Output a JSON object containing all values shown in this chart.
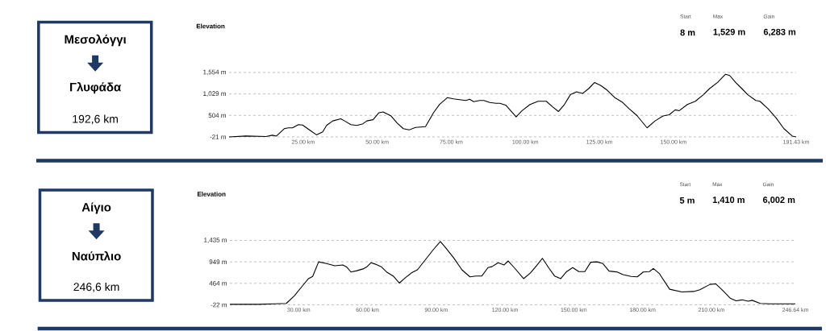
{
  "chart_data": [
    {
      "type": "line",
      "title": "Elevation",
      "color": "#000000",
      "grid": "y",
      "annotations": [
        "Μεσολόγγι",
        "Γλυφάδα",
        "192,6 km",
        "Start",
        "8 m",
        "Max",
        "1,529 m",
        "Gain",
        "6,283 m"
      ],
      "x": [
        0,
        5.7,
        12.5,
        14.6,
        16.0,
        18.6,
        20.0,
        21.4,
        23.4,
        24.8,
        27.5,
        29.5,
        31.6,
        32.9,
        35.0,
        37.7,
        39.0,
        41.1,
        43.1,
        45.2,
        46.5,
        48.6,
        50.6,
        52.0,
        54.7,
        56.7,
        58.8,
        60.8,
        62.9,
        66.3,
        69.0,
        71.0,
        73.7,
        75.8,
        77.8,
        79.9,
        81.2,
        82.6,
        84.6,
        86.0,
        88.0,
        90.1,
        91.4,
        93.5,
        96.9,
        98.9,
        101.6,
        104.3,
        107.1,
        109.1,
        111.2,
        113.2,
        115.2,
        117.3,
        119.3,
        121.4,
        123.4,
        125.4,
        127.5,
        130.2,
        132.9,
        135.0,
        137.7,
        141.1,
        143.8,
        146.5,
        148.6,
        150.6,
        152.0,
        154.7,
        157.4,
        160.1,
        162.2,
        164.9,
        167.6,
        169.0,
        171.0,
        173.1,
        175.1,
        177.8,
        179.2,
        181.9,
        184.6,
        187.3,
        190.1,
        191.43
      ],
      "values": [
        -21,
        0,
        -10,
        20,
        0,
        180,
        200,
        200,
        280,
        270,
        130,
        30,
        100,
        260,
        370,
        420,
        370,
        280,
        260,
        300,
        370,
        400,
        570,
        590,
        490,
        320,
        180,
        150,
        210,
        230,
        570,
        770,
        940,
        910,
        890,
        870,
        900,
        840,
        870,
        870,
        820,
        800,
        800,
        750,
        470,
        620,
        770,
        850,
        850,
        720,
        600,
        770,
        1010,
        1080,
        1040,
        1160,
        1310,
        1240,
        1130,
        940,
        820,
        670,
        500,
        200,
        370,
        490,
        520,
        640,
        620,
        770,
        850,
        1010,
        1160,
        1310,
        1510,
        1480,
        1310,
        1160,
        1010,
        870,
        850,
        670,
        450,
        180,
        0,
        -21
      ],
      "xlim": [
        0,
        191.43
      ],
      "ylim": [
        -21,
        1554
      ],
      "xticks": [
        {
          "value": 25,
          "label": "25.00 km"
        },
        {
          "value": 50,
          "label": "50.00 km"
        },
        {
          "value": 75,
          "label": "75.00 km"
        },
        {
          "value": 100,
          "label": "100.00 km"
        },
        {
          "value": 125,
          "label": "125.00 km"
        },
        {
          "value": 150,
          "label": "150.00 km"
        },
        {
          "value": 191.43,
          "label": "191.43 km"
        }
      ],
      "yticks": [
        {
          "value": -21,
          "label": "-21 m"
        },
        {
          "value": 504,
          "label": "504 m"
        },
        {
          "value": 1029,
          "label": "1,029 m"
        },
        {
          "value": 1554,
          "label": "1,554 m"
        }
      ]
    },
    {
      "type": "line",
      "title": "Elevation",
      "color": "#000000",
      "grid": "y",
      "annotations": [
        "Αίγιο",
        "Ναύπλιο",
        "246,6 km",
        "Start",
        "5 m",
        "Max",
        "1,410 m",
        "Gain",
        "6,002 m"
      ],
      "x": [
        0,
        12.3,
        19.4,
        24.6,
        28.1,
        31.7,
        34.3,
        36.1,
        38.7,
        42.2,
        45.7,
        49.3,
        51.0,
        52.8,
        55.4,
        58.1,
        59.8,
        61.6,
        63.3,
        66.0,
        68.6,
        71.2,
        73.9,
        76.5,
        79.2,
        81.8,
        85.3,
        88.8,
        91.8,
        94.1,
        97.6,
        101.2,
        104.7,
        107.3,
        109.9,
        112.6,
        114.3,
        117.0,
        119.6,
        121.4,
        124.0,
        128.1,
        131.1,
        133.7,
        136.3,
        139.0,
        141.6,
        144.3,
        146.9,
        149.5,
        152.2,
        154.8,
        157.4,
        160.1,
        162.7,
        165.4,
        168.9,
        171.5,
        175.0,
        177.7,
        180.3,
        183.0,
        184.7,
        187.4,
        191.8,
        197.1,
        202.3,
        205.0,
        209.4,
        212.0,
        214.6,
        218.2,
        220.8,
        223.4,
        226.1,
        227.8,
        231.3,
        235.7,
        246.64
      ],
      "values": [
        -10,
        -10,
        0,
        10,
        180,
        410,
        570,
        620,
        950,
        910,
        860,
        880,
        830,
        720,
        750,
        790,
        840,
        930,
        900,
        840,
        710,
        630,
        470,
        590,
        700,
        770,
        1000,
        1230,
        1410,
        1270,
        1040,
        770,
        610,
        630,
        630,
        820,
        840,
        930,
        880,
        970,
        820,
        570,
        700,
        860,
        1030,
        820,
        630,
        570,
        730,
        820,
        730,
        730,
        940,
        950,
        910,
        740,
        720,
        660,
        620,
        610,
        720,
        730,
        800,
        680,
        330,
        270,
        280,
        320,
        440,
        450,
        320,
        130,
        70,
        90,
        60,
        80,
        10,
        0,
        0
      ],
      "xlim": [
        0,
        246.64
      ],
      "ylim": [
        -22,
        1435
      ],
      "xticks": [
        {
          "value": 30,
          "label": "30.00 km"
        },
        {
          "value": 60,
          "label": "60.00 km"
        },
        {
          "value": 90,
          "label": "90.00 km"
        },
        {
          "value": 120,
          "label": "120.00 km"
        },
        {
          "value": 150,
          "label": "150.00 km"
        },
        {
          "value": 180,
          "label": "180.00 km"
        },
        {
          "value": 210,
          "label": "210.00 km"
        },
        {
          "value": 246.64,
          "label": "246.64 km"
        }
      ],
      "yticks": [
        {
          "value": -22,
          "label": "-22 m"
        },
        {
          "value": 464,
          "label": "464 m"
        },
        {
          "value": 949,
          "label": "949 m"
        },
        {
          "value": 1435,
          "label": "1,435 m"
        }
      ]
    }
  ]
}
